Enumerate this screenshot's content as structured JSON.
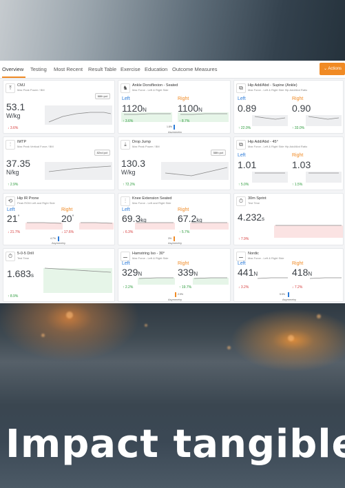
{
  "tabs": [
    "Overview",
    "Testing",
    "Most Recent",
    "Result Table",
    "Exercise",
    "Education",
    "Outcome Measures"
  ],
  "actions_label": "Actions",
  "colors": {
    "accent": "#f08a24",
    "left": "#2a7ad8",
    "right": "#f08a24",
    "good": "#2a9a3a",
    "bad": "#d63b3b"
  },
  "cards": {
    "cmj": {
      "icon": "jump-icon",
      "title": "CMJ",
      "sub": "Max Peak Power / BM",
      "badge": "66th pct",
      "value": "53.1",
      "unit": "W/kg",
      "delta": "3.6%"
    },
    "ankle": {
      "icon": "ankle-icon",
      "title": "Ankle Dorsiflexion - Seated",
      "sub": "Max Force - Left & Right Side",
      "left_label": "Left",
      "right_label": "Right",
      "left_value": "1120",
      "left_unit": "N",
      "right_value": "1100",
      "right_unit": "N",
      "left_delta": "3.6%",
      "right_delta": "8.7%",
      "asym_value": "1.8%",
      "asym_label": "Asymmetry"
    },
    "hipsup": {
      "icon": "hip-icon",
      "title": "Hip Add/Abd - Supine (Ankle)",
      "sub": "Max Force - Left & Right Side Hip Add/Abd Ratio",
      "left_label": "Left",
      "right_label": "Right",
      "left_value": "0.89",
      "right_value": "0.90",
      "left_delta": "22.0%",
      "right_delta": "33.0%"
    },
    "imtp": {
      "icon": "lift-icon",
      "title": "IMTP",
      "sub": "Max Peak Vertical Force / BM",
      "badge": "82nd pct",
      "value": "37.35",
      "unit": "N/kg",
      "delta": "2.9%"
    },
    "drop": {
      "icon": "drop-jump-icon",
      "title": "Drop Jump",
      "sub": "Max Peak Power / BM",
      "badge": "58th pct",
      "value": "130.3",
      "unit": "W/kg",
      "delta": "72.2%"
    },
    "hip45": {
      "icon": "hip-icon",
      "title": "Hip Add/Abd - 45°",
      "sub": "Max Force - Left & Right Side Hip Add/Abd Ratio",
      "left_label": "Left",
      "right_label": "Right",
      "left_value": "1.01",
      "right_value": "1.03",
      "left_delta": "5.0%",
      "right_delta": "1.5%"
    },
    "hipir": {
      "icon": "rotation-icon",
      "title": "Hip IR Prone",
      "sub": "Peak ROM Left and Right Side",
      "left_label": "Left",
      "right_label": "Right",
      "left_value": "21",
      "left_unit": "°",
      "right_value": "20",
      "right_unit": "°",
      "left_delta": "21.7%",
      "right_delta": "17.6%",
      "asym_value": "4.7%",
      "asym_label": "Asymmetry"
    },
    "knee": {
      "icon": "knee-icon",
      "title": "Knee Extension Seated",
      "sub": "Max Force - Left and Right Side",
      "left_label": "Left",
      "right_label": "Right",
      "left_value": "69.3",
      "left_unit": "kg",
      "right_value": "67.2",
      "right_unit": "kg",
      "left_delta": "6.3%",
      "right_delta": "5.7%",
      "asym_value": "3%",
      "asym_label": "Asymmetry"
    },
    "sprint": {
      "icon": "stopwatch-icon",
      "title": "30m Sprint",
      "sub": "Test Time",
      "value": "4.232",
      "unit": "s",
      "delta": "7.9%"
    },
    "drill": {
      "icon": "stopwatch-icon",
      "title": "5-0-5 Drill",
      "sub": "Test Time",
      "value": "1.683",
      "unit": "s",
      "delta": "8.9%"
    },
    "hamstring": {
      "icon": "hamstring-icon",
      "title": "Hamstring Iso - 30°",
      "sub": "Max Force - Left & Right Side",
      "left_label": "Left",
      "right_label": "Right",
      "left_value": "329",
      "left_unit": "N",
      "right_value": "339",
      "right_unit": "N",
      "left_delta": "2.2%",
      "right_delta": "19.7%",
      "asym_value": "2.9%",
      "asym_label": "Asymmetry"
    },
    "nordic": {
      "icon": "nordic-icon",
      "title": "Nordic",
      "sub": "Max Force - Left & Right Side",
      "left_label": "Left",
      "right_label": "Right",
      "left_value": "441",
      "left_unit": "N",
      "right_value": "418",
      "right_unit": "N",
      "left_delta": "3.2%",
      "right_delta": "7.2%",
      "asym_value": "5.5%",
      "asym_label": "Asymmetry"
    }
  },
  "caption": "Impact tangible"
}
